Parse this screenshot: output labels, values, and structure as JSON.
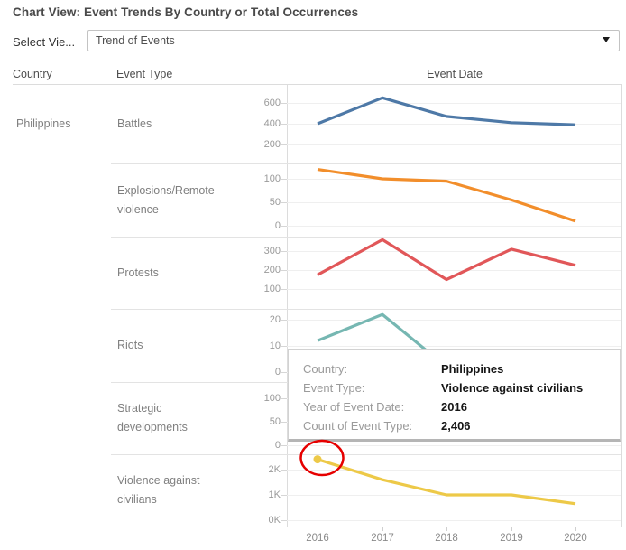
{
  "header": {
    "title": "Chart View: Event Trends By Country or Total Occurrences"
  },
  "controls": {
    "select_label": "Select Vie...",
    "view_select": {
      "value": "Trend of Events"
    }
  },
  "columns": {
    "country": "Country",
    "event_type": "Event Type",
    "event_date": "Event Date"
  },
  "chart_data": {
    "type": "line",
    "country": "Philippines",
    "x_axis_title": "Event Date",
    "x": [
      "2016",
      "2017",
      "2018",
      "2019",
      "2020"
    ],
    "legend_position": "none",
    "grid": true,
    "panels": [
      {
        "event_type": "Battles",
        "color": "#4e79a7",
        "ytick_labels": [
          "600",
          "400",
          "200"
        ],
        "yticks": [
          600,
          400,
          200
        ],
        "values": [
          400,
          650,
          470,
          410,
          390
        ]
      },
      {
        "event_type": "Explosions/Remote violence",
        "color": "#f28e2b",
        "ytick_labels": [
          "100",
          "50",
          "0"
        ],
        "yticks": [
          100,
          50,
          0
        ],
        "values": [
          120,
          100,
          95,
          55,
          10
        ]
      },
      {
        "event_type": "Protests",
        "color": "#e15759",
        "ytick_labels": [
          "300",
          "200",
          "100"
        ],
        "yticks": [
          300,
          200,
          100
        ],
        "values": [
          175,
          360,
          150,
          310,
          225
        ]
      },
      {
        "event_type": "Riots",
        "color": "#76b7b2",
        "ytick_labels": [
          "20",
          "10",
          "0"
        ],
        "yticks": [
          20,
          10,
          0
        ],
        "values": [
          12,
          22,
          2,
          null,
          null
        ]
      },
      {
        "event_type": "Strategic developments",
        "color": null,
        "ytick_labels": [
          "100",
          "50",
          "0"
        ],
        "yticks": [
          100,
          50,
          0
        ],
        "values": [
          null,
          null,
          null,
          null,
          null
        ]
      },
      {
        "event_type": "Violence against civilians",
        "color": "#edc948",
        "ytick_labels": [
          "2K",
          "1K",
          "0K"
        ],
        "yticks": [
          2000,
          1000,
          0
        ],
        "values": [
          2406,
          1600,
          1000,
          1000,
          650
        ]
      }
    ],
    "highlight": {
      "panel": 5,
      "x": "2016",
      "value": 2406,
      "marker_color": "#edc948"
    },
    "annotation": {
      "type": "ellipse",
      "target": "2016 Violence against civilians point",
      "color": "#e60000"
    }
  },
  "tooltip": {
    "rows": [
      {
        "label": "Country:",
        "value": "Philippines"
      },
      {
        "label": "Event Type:",
        "value": "Violence against civilians"
      },
      {
        "label": "Year of Event Date:",
        "value": "2016"
      },
      {
        "label": "Count of Event Type:",
        "value": "2,406"
      }
    ]
  }
}
